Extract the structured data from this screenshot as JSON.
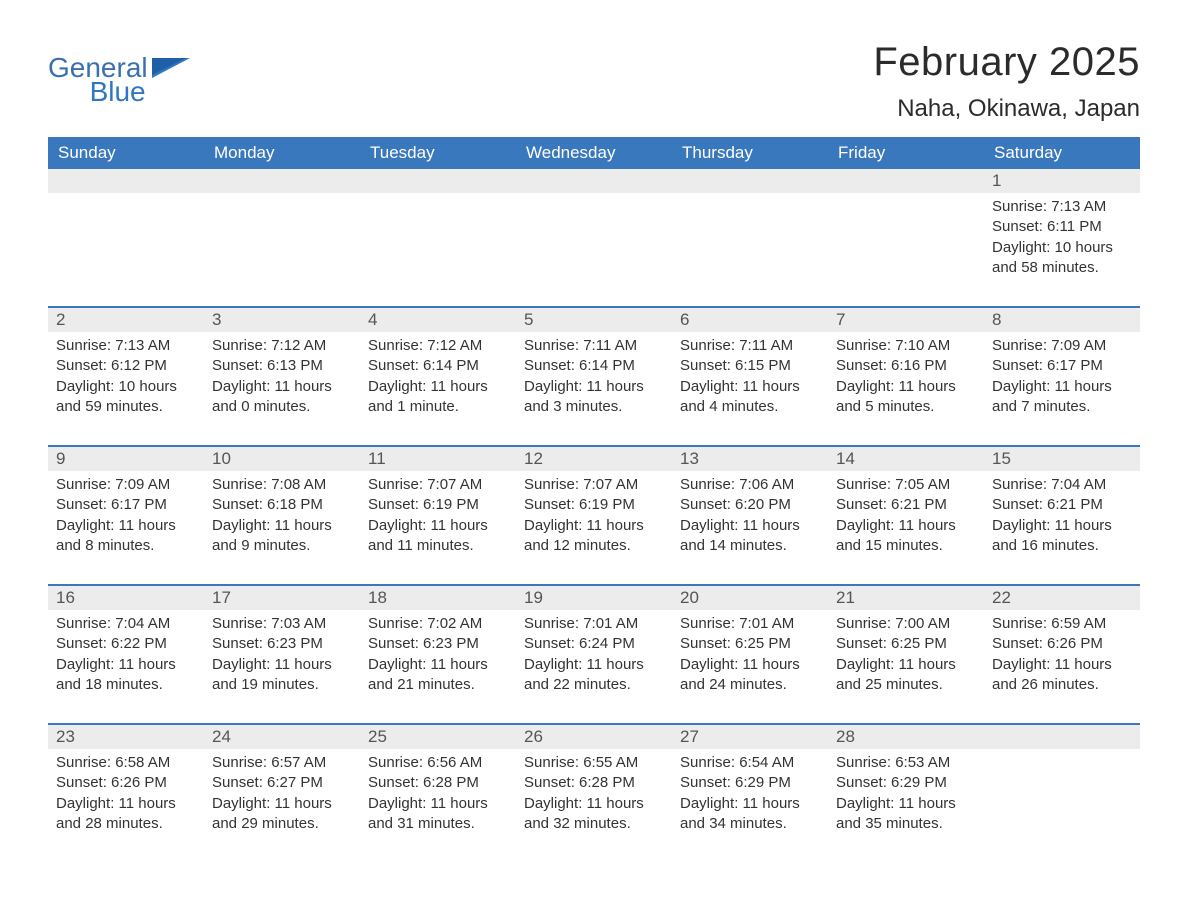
{
  "brand": {
    "name_part1": "General",
    "name_part2": "Blue",
    "text_color": "#3a6fb0",
    "accent_color": "#2f77c1",
    "flag_color": "#2f77c1"
  },
  "header": {
    "month_title": "February 2025",
    "location": "Naha, Okinawa, Japan",
    "title_color": "#2b2b2b",
    "title_fontsize": 40,
    "location_fontsize": 24
  },
  "calendar": {
    "header_bg": "#3a78bd",
    "header_text_color": "#ffffff",
    "row_divider_color": "#3a78bd",
    "daynum_bg": "#ececec",
    "text_color": "#333333",
    "weekdays": [
      "Sunday",
      "Monday",
      "Tuesday",
      "Wednesday",
      "Thursday",
      "Friday",
      "Saturday"
    ],
    "weeks": [
      [
        null,
        null,
        null,
        null,
        null,
        null,
        {
          "n": "1",
          "sunrise": "Sunrise: 7:13 AM",
          "sunset": "Sunset: 6:11 PM",
          "daylight1": "Daylight: 10 hours",
          "daylight2": "and 58 minutes."
        }
      ],
      [
        {
          "n": "2",
          "sunrise": "Sunrise: 7:13 AM",
          "sunset": "Sunset: 6:12 PM",
          "daylight1": "Daylight: 10 hours",
          "daylight2": "and 59 minutes."
        },
        {
          "n": "3",
          "sunrise": "Sunrise: 7:12 AM",
          "sunset": "Sunset: 6:13 PM",
          "daylight1": "Daylight: 11 hours",
          "daylight2": "and 0 minutes."
        },
        {
          "n": "4",
          "sunrise": "Sunrise: 7:12 AM",
          "sunset": "Sunset: 6:14 PM",
          "daylight1": "Daylight: 11 hours",
          "daylight2": "and 1 minute."
        },
        {
          "n": "5",
          "sunrise": "Sunrise: 7:11 AM",
          "sunset": "Sunset: 6:14 PM",
          "daylight1": "Daylight: 11 hours",
          "daylight2": "and 3 minutes."
        },
        {
          "n": "6",
          "sunrise": "Sunrise: 7:11 AM",
          "sunset": "Sunset: 6:15 PM",
          "daylight1": "Daylight: 11 hours",
          "daylight2": "and 4 minutes."
        },
        {
          "n": "7",
          "sunrise": "Sunrise: 7:10 AM",
          "sunset": "Sunset: 6:16 PM",
          "daylight1": "Daylight: 11 hours",
          "daylight2": "and 5 minutes."
        },
        {
          "n": "8",
          "sunrise": "Sunrise: 7:09 AM",
          "sunset": "Sunset: 6:17 PM",
          "daylight1": "Daylight: 11 hours",
          "daylight2": "and 7 minutes."
        }
      ],
      [
        {
          "n": "9",
          "sunrise": "Sunrise: 7:09 AM",
          "sunset": "Sunset: 6:17 PM",
          "daylight1": "Daylight: 11 hours",
          "daylight2": "and 8 minutes."
        },
        {
          "n": "10",
          "sunrise": "Sunrise: 7:08 AM",
          "sunset": "Sunset: 6:18 PM",
          "daylight1": "Daylight: 11 hours",
          "daylight2": "and 9 minutes."
        },
        {
          "n": "11",
          "sunrise": "Sunrise: 7:07 AM",
          "sunset": "Sunset: 6:19 PM",
          "daylight1": "Daylight: 11 hours",
          "daylight2": "and 11 minutes."
        },
        {
          "n": "12",
          "sunrise": "Sunrise: 7:07 AM",
          "sunset": "Sunset: 6:19 PM",
          "daylight1": "Daylight: 11 hours",
          "daylight2": "and 12 minutes."
        },
        {
          "n": "13",
          "sunrise": "Sunrise: 7:06 AM",
          "sunset": "Sunset: 6:20 PM",
          "daylight1": "Daylight: 11 hours",
          "daylight2": "and 14 minutes."
        },
        {
          "n": "14",
          "sunrise": "Sunrise: 7:05 AM",
          "sunset": "Sunset: 6:21 PM",
          "daylight1": "Daylight: 11 hours",
          "daylight2": "and 15 minutes."
        },
        {
          "n": "15",
          "sunrise": "Sunrise: 7:04 AM",
          "sunset": "Sunset: 6:21 PM",
          "daylight1": "Daylight: 11 hours",
          "daylight2": "and 16 minutes."
        }
      ],
      [
        {
          "n": "16",
          "sunrise": "Sunrise: 7:04 AM",
          "sunset": "Sunset: 6:22 PM",
          "daylight1": "Daylight: 11 hours",
          "daylight2": "and 18 minutes."
        },
        {
          "n": "17",
          "sunrise": "Sunrise: 7:03 AM",
          "sunset": "Sunset: 6:23 PM",
          "daylight1": "Daylight: 11 hours",
          "daylight2": "and 19 minutes."
        },
        {
          "n": "18",
          "sunrise": "Sunrise: 7:02 AM",
          "sunset": "Sunset: 6:23 PM",
          "daylight1": "Daylight: 11 hours",
          "daylight2": "and 21 minutes."
        },
        {
          "n": "19",
          "sunrise": "Sunrise: 7:01 AM",
          "sunset": "Sunset: 6:24 PM",
          "daylight1": "Daylight: 11 hours",
          "daylight2": "and 22 minutes."
        },
        {
          "n": "20",
          "sunrise": "Sunrise: 7:01 AM",
          "sunset": "Sunset: 6:25 PM",
          "daylight1": "Daylight: 11 hours",
          "daylight2": "and 24 minutes."
        },
        {
          "n": "21",
          "sunrise": "Sunrise: 7:00 AM",
          "sunset": "Sunset: 6:25 PM",
          "daylight1": "Daylight: 11 hours",
          "daylight2": "and 25 minutes."
        },
        {
          "n": "22",
          "sunrise": "Sunrise: 6:59 AM",
          "sunset": "Sunset: 6:26 PM",
          "daylight1": "Daylight: 11 hours",
          "daylight2": "and 26 minutes."
        }
      ],
      [
        {
          "n": "23",
          "sunrise": "Sunrise: 6:58 AM",
          "sunset": "Sunset: 6:26 PM",
          "daylight1": "Daylight: 11 hours",
          "daylight2": "and 28 minutes."
        },
        {
          "n": "24",
          "sunrise": "Sunrise: 6:57 AM",
          "sunset": "Sunset: 6:27 PM",
          "daylight1": "Daylight: 11 hours",
          "daylight2": "and 29 minutes."
        },
        {
          "n": "25",
          "sunrise": "Sunrise: 6:56 AM",
          "sunset": "Sunset: 6:28 PM",
          "daylight1": "Daylight: 11 hours",
          "daylight2": "and 31 minutes."
        },
        {
          "n": "26",
          "sunrise": "Sunrise: 6:55 AM",
          "sunset": "Sunset: 6:28 PM",
          "daylight1": "Daylight: 11 hours",
          "daylight2": "and 32 minutes."
        },
        {
          "n": "27",
          "sunrise": "Sunrise: 6:54 AM",
          "sunset": "Sunset: 6:29 PM",
          "daylight1": "Daylight: 11 hours",
          "daylight2": "and 34 minutes."
        },
        {
          "n": "28",
          "sunrise": "Sunrise: 6:53 AM",
          "sunset": "Sunset: 6:29 PM",
          "daylight1": "Daylight: 11 hours",
          "daylight2": "and 35 minutes."
        },
        null
      ]
    ]
  }
}
